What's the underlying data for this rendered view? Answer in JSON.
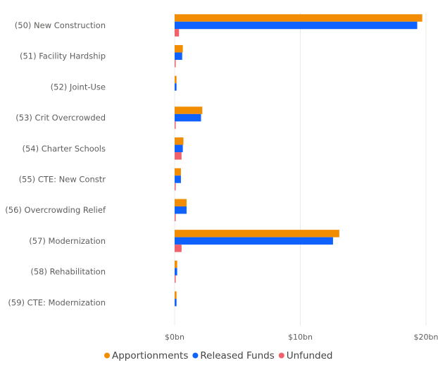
{
  "chart_data": {
    "type": "bar",
    "orientation": "horizontal",
    "title": "",
    "xlabel": "",
    "ylabel": "",
    "categories": [
      "(50) New Construction",
      "(51) Facility Hardship",
      "(52) Joint-Use",
      "(53) Crit Overcrowded",
      "(54) Charter Schools",
      "(55) CTE: New Constr",
      "(56) Overcrowding Relief",
      "(57) Modernization",
      "(58) Rehabilitation",
      "(59) CTE: Modernization"
    ],
    "series": [
      {
        "name": "Apportionments",
        "color": "#f28c00",
        "values": [
          19.7,
          0.65,
          0.15,
          2.2,
          0.7,
          0.5,
          0.95,
          13.1,
          0.2,
          0.15
        ]
      },
      {
        "name": "Released Funds",
        "color": "#0f62fe",
        "values": [
          19.3,
          0.6,
          0.15,
          2.1,
          0.65,
          0.5,
          0.95,
          12.6,
          0.2,
          0.15
        ]
      },
      {
        "name": "Unfunded",
        "color": "#f0616b",
        "values": [
          0.35,
          0.05,
          0.0,
          0.05,
          0.55,
          0.05,
          0.05,
          0.55,
          0.05,
          0.0
        ]
      }
    ],
    "xlim": [
      0,
      20
    ],
    "ticks": [
      {
        "value": 0,
        "label": "$0bn"
      },
      {
        "value": 10,
        "label": "$10bn"
      },
      {
        "value": 20,
        "label": "$20bn"
      }
    ],
    "grid": true,
    "legend_position": "bottom"
  }
}
